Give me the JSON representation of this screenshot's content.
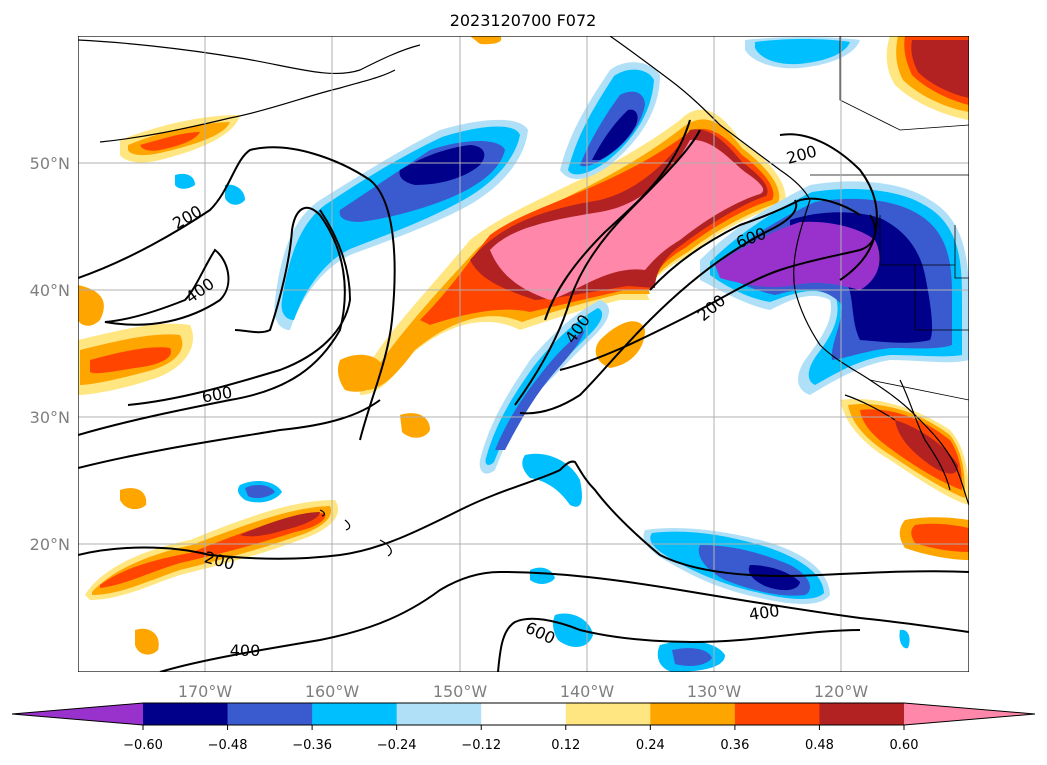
{
  "title": "2023120700 F072",
  "lat_labels": [
    "50°N",
    "40°N",
    "30°N",
    "20°N"
  ],
  "lon_labels": [
    "170°W",
    "160°W",
    "150°W",
    "140°W",
    "130°W",
    "120°W"
  ],
  "colorbar": {
    "ticks": [
      "−0.60",
      "−0.48",
      "−0.36",
      "−0.24",
      "−0.12",
      "0.12",
      "0.24",
      "0.36",
      "0.48",
      "0.60"
    ],
    "colors": [
      "#9932cc",
      "#00008b",
      "#3a5bd0",
      "#00bfff",
      "#b0e0f8",
      "#ffffff",
      "#ffe680",
      "#ffa500",
      "#ff4500",
      "#b22222",
      "#ff88aa"
    ]
  },
  "contour_labels": [
    "200",
    "400",
    "600",
    "600",
    "400",
    "200",
    "200",
    "600",
    "400",
    "200",
    "400",
    "600",
    "400"
  ]
}
